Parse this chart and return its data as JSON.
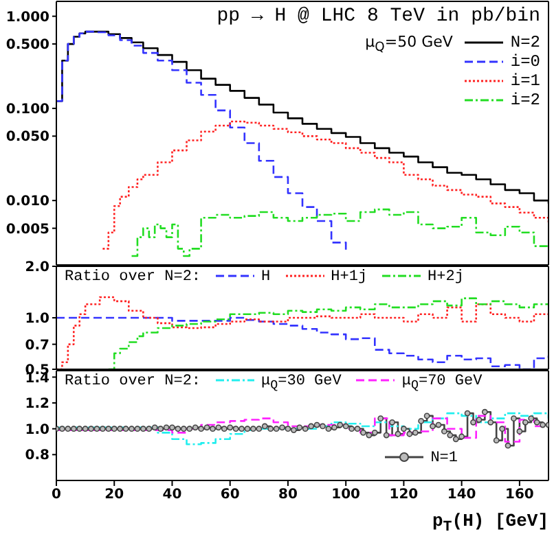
{
  "chart_data": [
    {
      "type": "step",
      "title": "pp → H @ LHC 8 TeV in pb/bin",
      "annotations": [
        "μ$_{Q}$=50 GeV"
      ],
      "log": "y",
      "legend": "top right",
      "tick_labels": "y",
      "xlim": [
        0,
        170
      ],
      "xticks": [
        0,
        20,
        40,
        60,
        80,
        100,
        120,
        140,
        160
      ],
      "ylim": [
        0.002,
        1.45
      ],
      "yticks": [
        {
          "value": 0.005,
          "label": "0.005"
        },
        {
          "value": 0.01,
          "label": "0.010"
        },
        {
          "value": 0.05,
          "label": "0.050"
        },
        {
          "value": 0.1,
          "label": "0.100"
        },
        {
          "value": 0.5,
          "label": "0.500"
        },
        {
          "value": 1,
          "label": "1.000"
        }
      ],
      "series": [
        {
          "name": "N=2",
          "color": "#000000",
          "line_style": "solid",
          "x": [
            0,
            2,
            4,
            6,
            8,
            10,
            14,
            18,
            22,
            26,
            30,
            35,
            40,
            45,
            50,
            55,
            60,
            65,
            70,
            75,
            80,
            85,
            90,
            95,
            100,
            105,
            110,
            115,
            120,
            125,
            130,
            135,
            140,
            145,
            150,
            155,
            160,
            165,
            170
          ],
          "values": [
            0.12,
            0.33,
            0.5,
            0.6,
            0.65,
            0.68,
            0.68,
            0.64,
            0.58,
            0.52,
            0.45,
            0.38,
            0.32,
            0.26,
            0.21,
            0.18,
            0.155,
            0.13,
            0.11,
            0.09,
            0.078,
            0.068,
            0.06,
            0.054,
            0.049,
            0.042,
            0.037,
            0.033,
            0.03,
            0.026,
            0.023,
            0.02,
            0.019,
            0.017,
            0.015,
            0.013,
            0.012,
            0.01,
            0.0093
          ]
        },
        {
          "name": "i=0",
          "color": "#3333ff",
          "line_style": "dashed",
          "x": [
            0,
            2,
            4,
            6,
            8,
            10,
            14,
            18,
            22,
            26,
            30,
            35,
            40,
            45,
            50,
            55,
            60,
            65,
            70,
            75,
            80,
            85,
            90,
            95,
            100
          ],
          "values": [
            0.12,
            0.33,
            0.5,
            0.6,
            0.65,
            0.68,
            0.67,
            0.62,
            0.55,
            0.48,
            0.4,
            0.33,
            0.26,
            0.19,
            0.14,
            0.095,
            0.062,
            0.042,
            0.027,
            0.018,
            0.012,
            0.0085,
            0.006,
            0.0035,
            0.0027
          ]
        },
        {
          "name": "i=1",
          "color": "#ff2222",
          "line_style": "dotted",
          "x": [
            16,
            18,
            20,
            22,
            25,
            28,
            30,
            35,
            40,
            45,
            50,
            55,
            60,
            65,
            70,
            75,
            80,
            85,
            90,
            95,
            100,
            105,
            110,
            115,
            120,
            125,
            130,
            135,
            140,
            145,
            150,
            155,
            160,
            165,
            170
          ],
          "values": [
            0.003,
            0.0045,
            0.0087,
            0.011,
            0.014,
            0.017,
            0.019,
            0.026,
            0.035,
            0.045,
            0.056,
            0.065,
            0.072,
            0.07,
            0.065,
            0.06,
            0.055,
            0.05,
            0.046,
            0.042,
            0.037,
            0.033,
            0.029,
            0.026,
            0.019,
            0.017,
            0.0145,
            0.013,
            0.0116,
            0.011,
            0.0093,
            0.0085,
            0.0074,
            0.0065,
            0.0058
          ]
        },
        {
          "name": "i=2",
          "color": "#22dd22",
          "line_style": "dashdot",
          "x": [
            26,
            28,
            30,
            32,
            34,
            36,
            38,
            40,
            42,
            44,
            46,
            50,
            55,
            60,
            65,
            70,
            75,
            80,
            85,
            90,
            95,
            100,
            105,
            110,
            115,
            120,
            125,
            130,
            135,
            140,
            145,
            150,
            155,
            160,
            165,
            170
          ],
          "values": [
            0.0025,
            0.004,
            0.005,
            0.004,
            0.0055,
            0.005,
            0.004,
            0.0055,
            0.003,
            0.0025,
            0.003,
            0.0065,
            0.007,
            0.0065,
            0.0068,
            0.0075,
            0.0065,
            0.006,
            0.0065,
            0.007,
            0.0072,
            0.006,
            0.0075,
            0.008,
            0.007,
            0.0075,
            0.0055,
            0.005,
            0.0052,
            0.0065,
            0.0045,
            0.0042,
            0.0052,
            0.0045,
            0.0032,
            0.0032
          ]
        }
      ]
    },
    {
      "type": "step",
      "legend_title": "Ratio over N=2:",
      "log": "y",
      "legend": "top",
      "tick_labels": "y",
      "xlim": [
        0,
        170
      ],
      "xticks": [
        0,
        20,
        40,
        60,
        80,
        100,
        120,
        140,
        160
      ],
      "ylim": [
        0.5,
        2
      ],
      "yticks": [
        {
          "value": 0.5,
          "label": "0.5"
        },
        {
          "value": 0.7,
          "label": "0.7"
        },
        {
          "value": 1,
          "label": "1.0"
        },
        {
          "value": 2,
          "label": "2.0"
        }
      ],
      "series": [
        {
          "name": "H",
          "color": "#3333ff",
          "line_style": "dashed",
          "x": [
            0,
            10,
            20,
            30,
            40,
            50,
            60,
            65,
            70,
            75,
            80,
            85,
            90,
            95,
            100,
            105,
            110,
            115,
            120,
            125,
            130,
            135,
            140,
            145,
            150,
            155,
            160,
            165,
            170
          ],
          "values": [
            1.0,
            1.0,
            1.0,
            1.0,
            0.96,
            0.96,
            1.0,
            0.97,
            0.95,
            0.92,
            0.9,
            0.86,
            0.82,
            0.8,
            0.75,
            0.76,
            0.65,
            0.62,
            0.6,
            0.57,
            0.55,
            0.6,
            0.57,
            0.58,
            0.52,
            0.53,
            0.5,
            0.58,
            0.6
          ]
        },
        {
          "name": "H+1j",
          "color": "#ff2222",
          "line_style": "dotted",
          "x": [
            0,
            2,
            4,
            6,
            8,
            10,
            15,
            20,
            25,
            30,
            35,
            40,
            45,
            50,
            55,
            60,
            65,
            70,
            75,
            80,
            85,
            90,
            95,
            100,
            105,
            110,
            115,
            120,
            125,
            130,
            135,
            140,
            145,
            150,
            155,
            160,
            165,
            170
          ],
          "values": [
            0.5,
            0.55,
            0.7,
            0.9,
            1.05,
            1.2,
            1.32,
            1.25,
            1.1,
            1.0,
            0.93,
            0.88,
            0.87,
            0.88,
            0.92,
            0.95,
            0.98,
            0.95,
            0.95,
            1.0,
            1.0,
            1.02,
            1.0,
            1.0,
            1.05,
            1.0,
            1.0,
            0.95,
            1.05,
            1.0,
            1.15,
            0.95,
            1.2,
            1.05,
            1.0,
            0.95,
            1.05,
            1.05
          ]
        },
        {
          "name": "H+2j",
          "color": "#22dd22",
          "line_style": "dashdot",
          "x": [
            18,
            20,
            22,
            25,
            28,
            30,
            35,
            40,
            45,
            50,
            55,
            60,
            65,
            70,
            75,
            80,
            85,
            90,
            95,
            100,
            105,
            110,
            115,
            120,
            125,
            130,
            135,
            140,
            145,
            150,
            155,
            160,
            165,
            170
          ],
          "values": [
            0.5,
            0.62,
            0.66,
            0.72,
            0.78,
            0.82,
            0.87,
            0.9,
            0.92,
            0.95,
            0.98,
            1.05,
            1.05,
            1.07,
            1.05,
            1.1,
            1.08,
            1.12,
            1.1,
            1.15,
            1.12,
            1.2,
            1.15,
            1.15,
            1.2,
            1.25,
            1.18,
            1.3,
            1.2,
            1.25,
            1.2,
            1.15,
            1.2,
            1.22
          ]
        }
      ]
    },
    {
      "type": "step",
      "legend_title": "Ratio over N=2:",
      "legend": "top",
      "xlabel": "p$_{T}$(H) [GeV]",
      "xlim": [
        0,
        170
      ],
      "xticks": [
        0,
        20,
        40,
        60,
        80,
        100,
        120,
        140,
        160
      ],
      "ylim": [
        0.6,
        1.45
      ],
      "yticks": [
        {
          "value": 0.8,
          "label": "0.8"
        },
        {
          "value": 1,
          "label": "1.0"
        },
        {
          "value": 1.2,
          "label": "1.2"
        },
        {
          "value": 1.4,
          "label": "1.4"
        }
      ],
      "series": [
        {
          "name": "μ$_{Q}$=30 GeV",
          "color": "#22eeee",
          "line_style": "dashdot",
          "x": [
            0,
            10,
            20,
            30,
            35,
            40,
            45,
            50,
            55,
            60,
            65,
            70,
            80,
            90,
            95,
            100,
            105,
            110,
            115,
            120,
            125,
            130,
            135,
            140,
            145,
            150,
            155,
            160,
            165,
            170
          ],
          "values": [
            1.01,
            1.01,
            1.01,
            1.01,
            0.97,
            0.92,
            0.88,
            0.89,
            0.92,
            0.96,
            0.99,
            1.0,
            1.0,
            1.02,
            1.05,
            1.04,
            1.02,
            1.05,
            1.02,
            1.0,
            1.05,
            1.08,
            1.12,
            1.1,
            1.05,
            1.08,
            1.12,
            1.1,
            1.12,
            1.08
          ]
        },
        {
          "name": "μ$_{Q}$=70 GeV",
          "color": "#ff22ff",
          "line_style": "dashed",
          "x": [
            0,
            10,
            20,
            30,
            40,
            45,
            50,
            55,
            60,
            65,
            70,
            75,
            80,
            90,
            100,
            105,
            110,
            115,
            120,
            125,
            130,
            135,
            140,
            145,
            150,
            155,
            160,
            165,
            170
          ],
          "values": [
            0.99,
            0.99,
            0.99,
            0.99,
            0.97,
            1.0,
            1.03,
            1.05,
            1.06,
            1.07,
            1.08,
            1.05,
            1.02,
            1.03,
            1.0,
            0.97,
            1.08,
            0.95,
            0.97,
            0.98,
            1.08,
            1.0,
            0.93,
            1.1,
            1.05,
            0.9,
            1.07,
            1.02,
            1.05
          ]
        },
        {
          "name": "N=1",
          "color": "#444444",
          "line_style": "solid",
          "marker": "circle",
          "x": [
            0,
            2,
            4,
            6,
            8,
            10,
            12,
            14,
            16,
            18,
            20,
            22,
            24,
            26,
            28,
            30,
            32,
            34,
            36,
            38,
            40,
            42,
            44,
            46,
            48,
            50,
            52,
            54,
            56,
            58,
            60,
            62,
            64,
            66,
            68,
            70,
            72,
            74,
            76,
            78,
            80,
            82,
            84,
            86,
            88,
            90,
            92,
            94,
            96,
            98,
            100,
            102,
            104,
            106,
            108,
            110,
            112,
            114,
            116,
            118,
            120,
            122,
            124,
            126,
            128,
            130,
            132,
            134,
            136,
            138,
            140,
            142,
            144,
            146,
            148,
            150,
            152,
            154,
            156,
            158,
            160,
            162,
            164,
            166,
            168,
            170
          ],
          "values": [
            1.0,
            1.0,
            1.0,
            1.0,
            1.0,
            1.0,
            1.0,
            1.0,
            1.0,
            1.0,
            1.0,
            1.0,
            1.0,
            1.0,
            1.0,
            1.0,
            1.0,
            1.01,
            1.0,
            1.01,
            1.01,
            1.0,
            1.0,
            1.0,
            1.01,
            1.0,
            1.01,
            1.0,
            1.01,
            1.0,
            1.01,
            1.0,
            1.0,
            1.0,
            1.0,
            1.0,
            1.02,
            1.0,
            1.0,
            1.01,
            1.0,
            0.99,
            1.01,
            1.0,
            1.02,
            1.03,
            1.02,
            1.0,
            1.01,
            1.03,
            1.02,
            1.0,
            1.0,
            0.97,
            0.95,
            0.97,
            1.08,
            0.95,
            1.05,
            0.96,
            1.0,
            0.96,
            0.97,
            1.06,
            1.1,
            1.02,
            1.03,
            0.98,
            0.95,
            0.92,
            0.94,
            1.12,
            1.05,
            1.07,
            1.13,
            1.05,
            0.91,
            1.0,
            0.87,
            1.08,
            0.98,
            1.05,
            1.08,
            1.05,
            1.03,
            1.03
          ]
        }
      ]
    }
  ]
}
